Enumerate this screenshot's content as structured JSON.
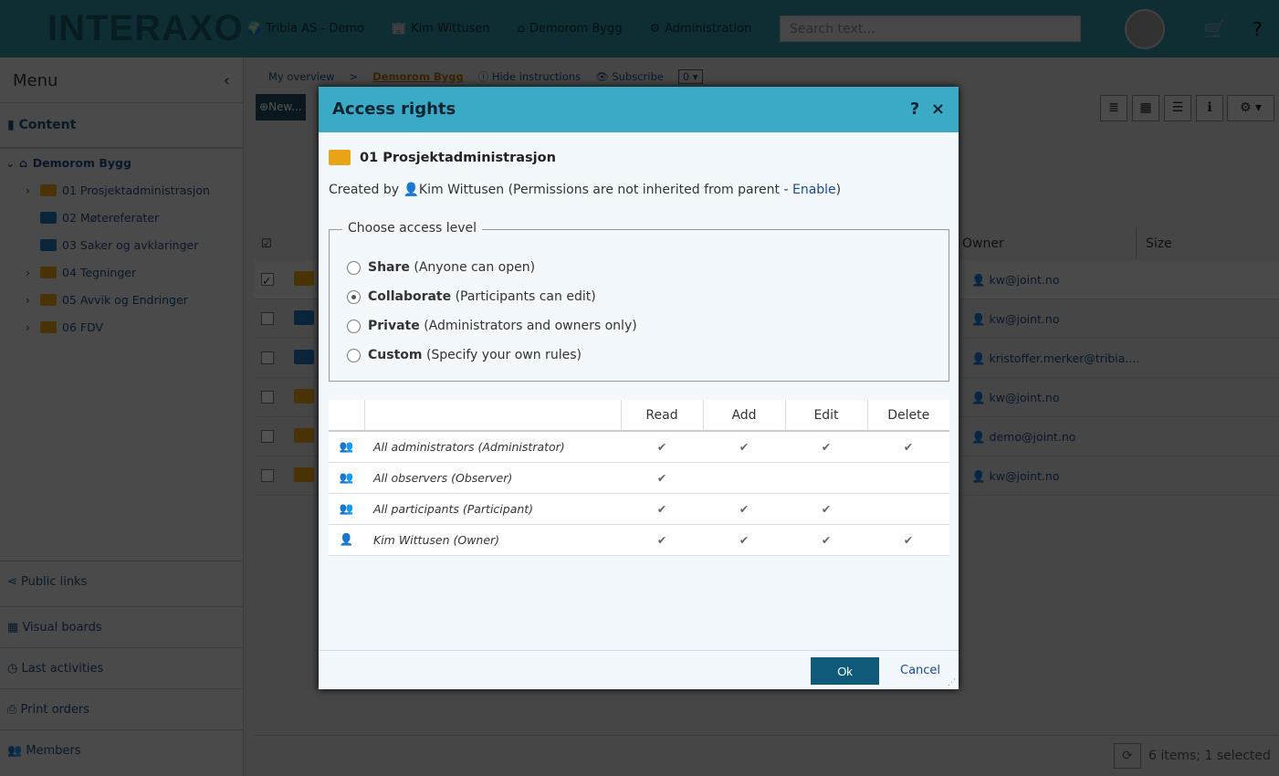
{
  "header": {
    "logo": "INTERAXO",
    "nav": [
      {
        "icon": "globe-icon",
        "label": "Tribia AS - Demo"
      },
      {
        "icon": "building-icon",
        "label": "Kim Wittusen"
      },
      {
        "icon": "home-icon",
        "label": "Demorom Bygg"
      },
      {
        "icon": "gear-icon",
        "label": "Administration"
      }
    ],
    "search_placeholder": "Search text..."
  },
  "sidebar": {
    "menu": "Menu",
    "content": "Content",
    "root": "Demorom Bygg",
    "items": [
      "01 Prosjektadministrasjon",
      "02 Møtereferater",
      "03 Saker og avklaringer",
      "04 Tegninger",
      "05 Avvik og Endringer",
      "06 FDV"
    ],
    "links": [
      "Public links",
      "Visual boards",
      "Last activities",
      "Print orders",
      "Members"
    ]
  },
  "breadcrumb": {
    "home": "My overview",
    "sep": ">",
    "current": "Demorom Bygg",
    "hide": "Hide instructions",
    "subscribe": "Subscribe",
    "subscribe_value": "0"
  },
  "toolbar": {
    "new": "New..."
  },
  "table": {
    "owner": "Owner",
    "size": "Size",
    "owners": [
      "kw@joint.no",
      "kw@joint.no",
      "kristoffer.merker@tribia....",
      "kw@joint.no",
      "demo@joint.no",
      "kw@joint.no"
    ],
    "selected_row": 0
  },
  "footer": {
    "status": "6 items; 1 selected"
  },
  "dialog": {
    "title": "Access rights",
    "help": "?",
    "close": "×",
    "folder": "01 Prosjektadministrasjon",
    "created_by": "Created by",
    "creator": "Kim Wittusen",
    "perm_note": "(Permissions are not inherited from parent - ",
    "enable": "Enable",
    "perm_end": ")",
    "legend": "Choose access level",
    "options": [
      {
        "label": "Share",
        "desc": "(Anyone can open)",
        "selected": false
      },
      {
        "label": "Collaborate",
        "desc": "(Participants can edit)",
        "selected": true
      },
      {
        "label": "Private",
        "desc": "(Administrators and owners only)",
        "selected": false
      },
      {
        "label": "Custom",
        "desc": "(Specify your own rules)",
        "selected": false
      }
    ],
    "columns": [
      "Read",
      "Add",
      "Edit",
      "Delete"
    ],
    "rows": [
      {
        "icon": "group-icon",
        "name": "All administrators (Administrator)",
        "perms": [
          true,
          true,
          true,
          true
        ]
      },
      {
        "icon": "group-icon",
        "name": "All observers (Observer)",
        "perms": [
          true,
          false,
          false,
          false
        ]
      },
      {
        "icon": "group-icon",
        "name": "All participants (Participant)",
        "perms": [
          true,
          true,
          true,
          false
        ]
      },
      {
        "icon": "user-icon",
        "name": "Kim Wittusen (Owner)",
        "perms": [
          true,
          true,
          true,
          true
        ]
      }
    ],
    "ok": "Ok",
    "cancel": "Cancel"
  },
  "colors": {
    "header": "#2d8fa0",
    "dialog_header": "#3aaac6",
    "ok_button": "#0e5a78"
  }
}
